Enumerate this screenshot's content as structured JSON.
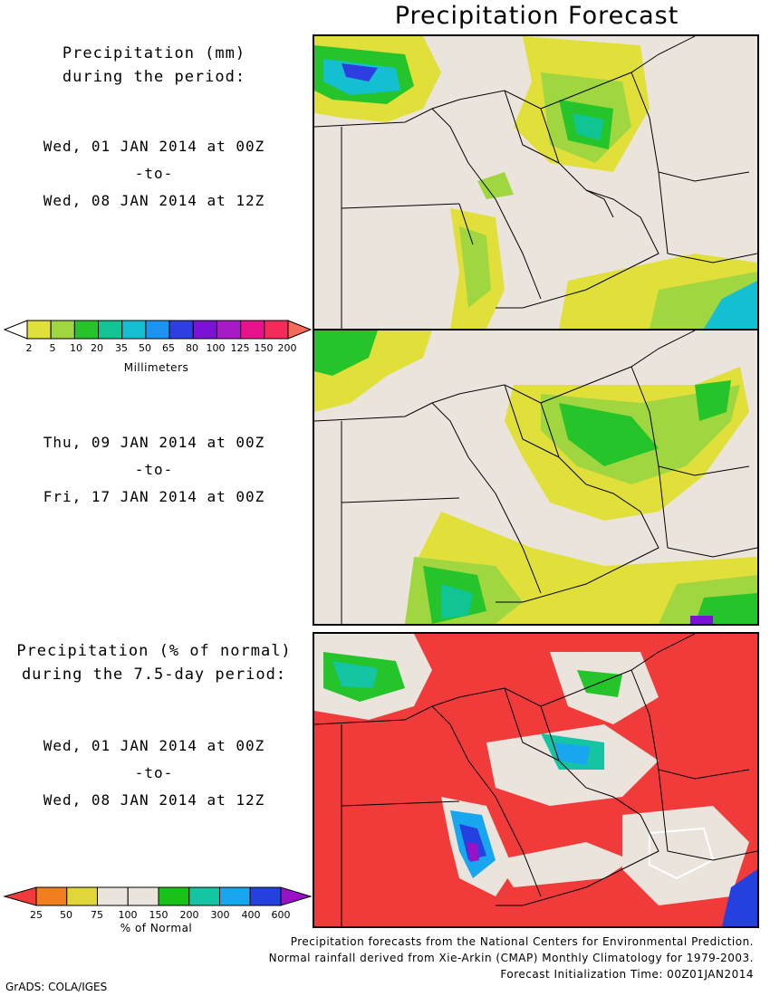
{
  "title": "Precipitation Forecast",
  "panel1": {
    "heading_line1": "Precipitation (mm)",
    "heading_line2": "during the period:",
    "start": "Wed, 01 JAN 2014 at 00Z",
    "to": "-to-",
    "end": "Wed, 08 JAN 2014 at 12Z"
  },
  "panel2": {
    "start": "Thu, 09 JAN 2014 at 00Z",
    "to": "-to-",
    "end": "Fri, 17 JAN 2014 at 00Z"
  },
  "panel3": {
    "heading_line1": "Precipitation (% of normal)",
    "heading_line2": "during the 7.5-day period:",
    "start": "Wed, 01 JAN 2014 at 00Z",
    "to": "-to-",
    "end": "Wed, 08 JAN 2014 at 12Z"
  },
  "colorbar_mm": {
    "title": "Millimeters",
    "labels": [
      "2",
      "5",
      "10",
      "20",
      "35",
      "50",
      "65",
      "80",
      "100",
      "125",
      "150",
      "200"
    ],
    "colors": [
      "#ffffff",
      "#e1e03a",
      "#a0d640",
      "#24c42a",
      "#10c493",
      "#14bfd1",
      "#1c93f0",
      "#2d3fe1",
      "#7b12d5",
      "#a71bc7",
      "#e8128c",
      "#f52b5c",
      "#f36a59"
    ]
  },
  "colorbar_pct": {
    "title": "% of Normal",
    "labels": [
      "25",
      "50",
      "75",
      "100",
      "150",
      "200",
      "300",
      "400",
      "600"
    ],
    "colors": [
      "#f13b3b",
      "#f07f1f",
      "#e0d63a",
      "#ebe4dc",
      "#ebe4dc",
      "#17c219",
      "#14c4a3",
      "#18a7ef",
      "#2441e0",
      "#9a12c8"
    ]
  },
  "footer": {
    "line1": "Precipitation forecasts from the National Centers for Environmental Prediction.",
    "line2": "Normal rainfall derived from Xie-Arkin (CMAP) Monthly Climatology for 1979-2003.",
    "line3": "Forecast Initialization Time: 00Z01JAN2014"
  },
  "credit": "GrADS: COLA/IGES"
}
